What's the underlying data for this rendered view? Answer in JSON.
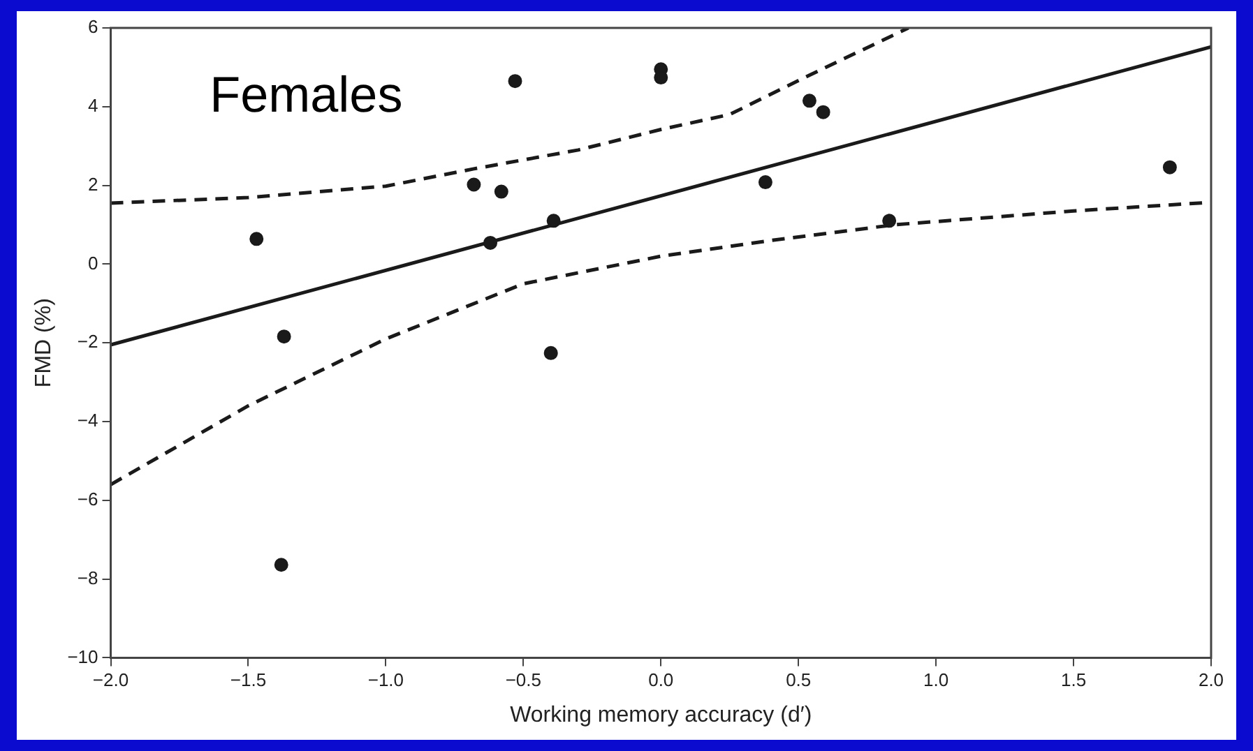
{
  "chart_data": {
    "type": "scatter",
    "xlabel": "Working memory accuracy (d′)",
    "ylabel": "FMD (%)",
    "annotations": [
      "Females"
    ],
    "xlim": [
      -2,
      2
    ],
    "xticks": [
      {
        "value": -2,
        "label": "−2.0"
      },
      {
        "value": -1.5,
        "label": "−1.5"
      },
      {
        "value": -1,
        "label": "−1.0"
      },
      {
        "value": -0.5,
        "label": "−0.5"
      },
      {
        "value": 0,
        "label": "0.0"
      },
      {
        "value": 0.5,
        "label": "0.5"
      },
      {
        "value": 1,
        "label": "1.0"
      },
      {
        "value": 1.5,
        "label": "1.5"
      },
      {
        "value": 2,
        "label": "2.0"
      }
    ],
    "ylim": [
      -10,
      6
    ],
    "yticks": [
      {
        "value": -10,
        "label": "−10"
      },
      {
        "value": -8,
        "label": "−8"
      },
      {
        "value": -6,
        "label": "−6"
      },
      {
        "value": -4,
        "label": "−4"
      },
      {
        "value": -2,
        "label": "−2"
      },
      0,
      2,
      4,
      6
    ],
    "grid": false,
    "legend": false,
    "marker": "circle",
    "series": [
      {
        "type": "scatter",
        "color": "#1a1a1a",
        "x": [
          -1.47,
          -1.37,
          -1.38,
          -0.68,
          -0.62,
          -0.58,
          -0.53,
          -0.39,
          -0.4,
          0,
          0,
          0.38,
          0.54,
          0.59,
          0.83,
          1.85
        ],
        "values": [
          0.64,
          -1.84,
          -7.64,
          2.02,
          0.54,
          1.84,
          4.65,
          1.1,
          -2.26,
          4.95,
          4.74,
          2.08,
          4.15,
          3.86,
          1.1,
          2.46
        ]
      },
      {
        "type": "line",
        "color": "#1a1a1a",
        "line_style": "solid",
        "marker": "none",
        "x": [
          -2,
          2
        ],
        "values": [
          -2.05,
          5.52
        ]
      },
      {
        "type": "line",
        "color": "#1a1a1a",
        "line_style": "dashed",
        "marker": "none",
        "x": [
          -2,
          -1.5,
          -1,
          -0.68,
          -0.3,
          0,
          0.25,
          0.54,
          0.9
        ],
        "values": [
          1.55,
          1.69,
          1.98,
          2.42,
          2.9,
          3.42,
          3.8,
          4.8,
          6
        ]
      },
      {
        "type": "line",
        "color": "#1a1a1a",
        "line_style": "dashed",
        "marker": "none",
        "x": [
          -2,
          -1.5,
          -1,
          -0.5,
          0,
          0.4,
          0.85,
          1.5,
          2
        ],
        "values": [
          -5.6,
          -3.6,
          -1.9,
          -0.5,
          0.2,
          0.6,
          1,
          1.35,
          1.57
        ]
      }
    ]
  }
}
